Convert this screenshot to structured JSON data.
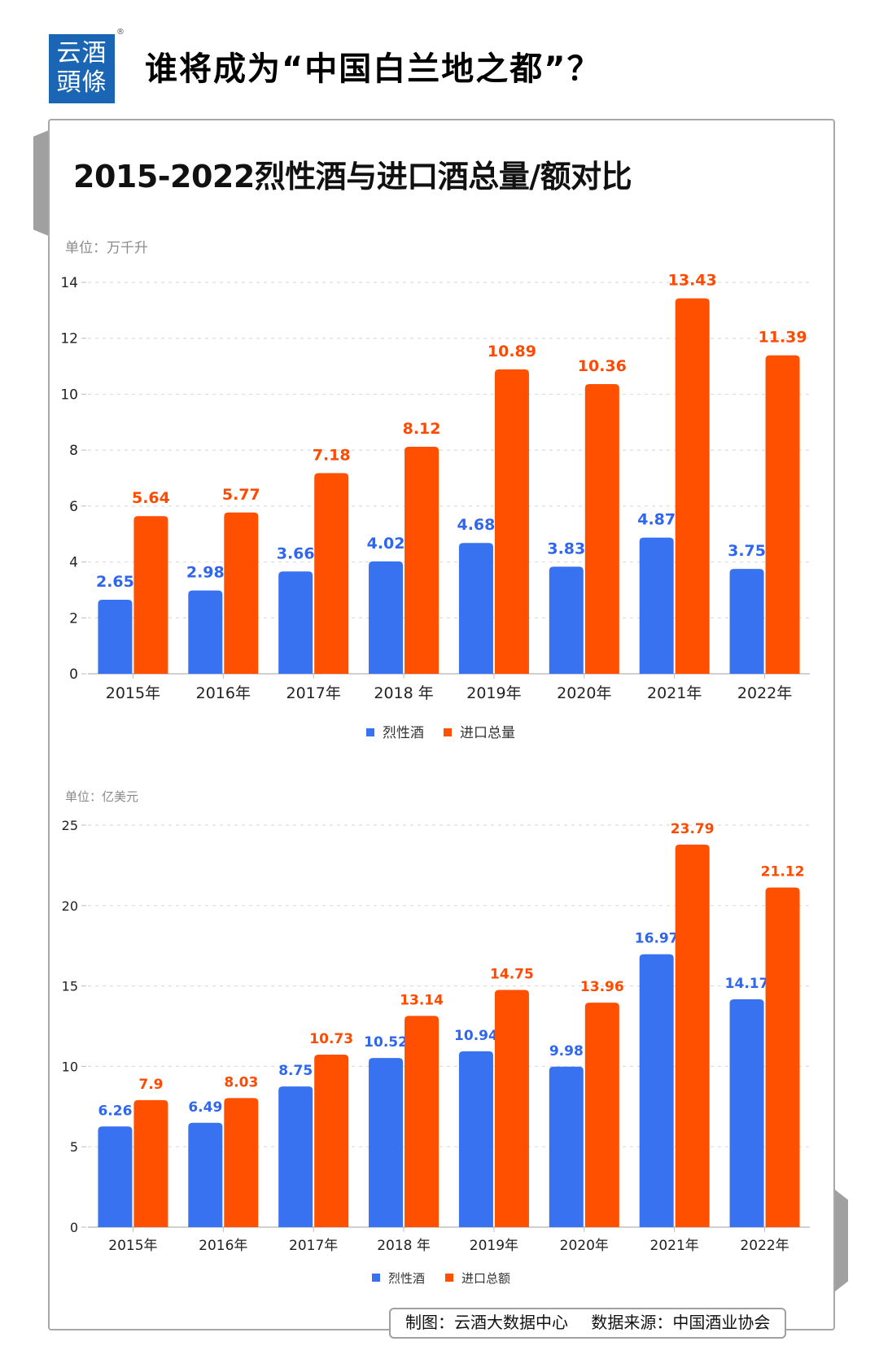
{
  "header": {
    "logo_lines": [
      "云酒",
      "頭條"
    ],
    "logo_registered": "®",
    "headline": "谁将成为“中国白兰地之都”？"
  },
  "card": {
    "title": "2015-2022烈性酒与进口酒总量/额对比"
  },
  "colors": {
    "spirits": "#3872f0",
    "imports": "#ff5000",
    "spirits_label": "#2f66ee",
    "imports_label": "#ff4a00",
    "grid": "#dcdcdc",
    "axis": "#d0d0d0",
    "tick_text": "#222222",
    "logo_bg": "#1a66b5"
  },
  "footer": {
    "producer": "制图：云酒大数据中心",
    "source": "数据来源：中国酒业协会"
  },
  "chart_data": [
    {
      "type": "bar",
      "title": "2015-2022烈性酒与进口酒总量/额对比",
      "unit_label": "单位：万千升",
      "xlabel": "",
      "ylabel": "万千升",
      "categories": [
        "2015年",
        "2016年",
        "2017年",
        "2018 年",
        "2019年",
        "2020年",
        "2021年",
        "2022年"
      ],
      "series": [
        {
          "name": "烈性酒",
          "values": [
            2.65,
            2.98,
            3.66,
            4.02,
            4.68,
            3.83,
            4.87,
            3.75
          ]
        },
        {
          "name": "进口总量",
          "values": [
            5.64,
            5.77,
            7.18,
            8.12,
            10.89,
            10.36,
            13.43,
            11.39
          ]
        }
      ],
      "ylim": [
        0,
        14
      ],
      "yticks": [
        0,
        2,
        4,
        6,
        8,
        10,
        12,
        14
      ],
      "grid": true,
      "legend": "bottom-center"
    },
    {
      "type": "bar",
      "unit_label": "单位：亿美元",
      "xlabel": "",
      "ylabel": "亿美元",
      "categories": [
        "2015年",
        "2016年",
        "2017年",
        "2018 年",
        "2019年",
        "2020年",
        "2021年",
        "2022年"
      ],
      "series": [
        {
          "name": "烈性酒",
          "values": [
            6.26,
            6.49,
            8.75,
            10.52,
            10.94,
            9.98,
            16.97,
            14.17
          ]
        },
        {
          "name": "进口总额",
          "values": [
            7.9,
            8.03,
            10.73,
            13.14,
            14.75,
            13.96,
            23.79,
            21.12
          ]
        }
      ],
      "ylim": [
        0,
        25
      ],
      "yticks": [
        0,
        5,
        10,
        15,
        20,
        25
      ],
      "grid": true,
      "legend": "bottom-center"
    }
  ]
}
